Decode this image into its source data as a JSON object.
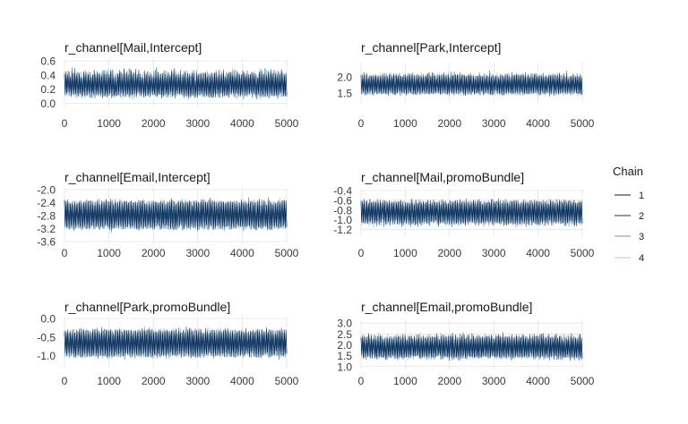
{
  "legend": {
    "title": "Chain",
    "placement": "right",
    "items": [
      {
        "label": "1",
        "color": "#011f4b"
      },
      {
        "label": "2",
        "color": "#03396c"
      },
      {
        "label": "3",
        "color": "#6497b1"
      },
      {
        "label": "4",
        "color": "#b3cde0"
      }
    ]
  },
  "chart_data": [
    {
      "type": "line",
      "title": "r_channel[Mail,Intercept]",
      "x_range": [
        0,
        5000
      ],
      "x_ticks": [
        "0",
        "1000",
        "2000",
        "3000",
        "4000",
        "5000"
      ],
      "ylim": [
        -0.03,
        0.6
      ],
      "y_ticks": [
        "0.0",
        "0.2",
        "0.4",
        "0.6"
      ],
      "bands": [
        {
          "center": 0.41,
          "spread": 0.07
        },
        {
          "center": 0.12,
          "spread": 0.05
        }
      ],
      "series": [
        {
          "name": "1"
        },
        {
          "name": "2"
        },
        {
          "name": "3"
        },
        {
          "name": "4"
        }
      ]
    },
    {
      "type": "line",
      "title": "r_channel[Park,Intercept]",
      "x_range": [
        0,
        5000
      ],
      "x_ticks": [
        "0",
        "1000",
        "2000",
        "3000",
        "4000",
        "5000"
      ],
      "ylim": [
        1.25,
        2.38
      ],
      "y_ticks": [
        "1.5",
        "2.0"
      ],
      "bands": [
        {
          "center": 2.02,
          "spread": 0.11
        },
        {
          "center": 1.5,
          "spread": 0.08
        }
      ],
      "series": [
        {
          "name": "1"
        },
        {
          "name": "2"
        },
        {
          "name": "3"
        },
        {
          "name": "4"
        }
      ]
    },
    {
      "type": "line",
      "title": "r_channel[Email,Intercept]",
      "x_range": [
        0,
        5000
      ],
      "x_ticks": [
        "0",
        "1000",
        "2000",
        "3000",
        "4000",
        "5000"
      ],
      "ylim": [
        -3.6,
        -2.0
      ],
      "y_ticks": [
        "-2.0",
        "-2.4",
        "-2.8",
        "-3.2",
        "-3.6"
      ],
      "bands": [
        {
          "center": -2.4,
          "spread": 0.1
        },
        {
          "center": -3.15,
          "spread": 0.1
        }
      ],
      "series": [
        {
          "name": "1"
        },
        {
          "name": "2"
        },
        {
          "name": "3"
        },
        {
          "name": "4"
        }
      ]
    },
    {
      "type": "line",
      "title": "r_channel[Mail,promoBundle]",
      "x_range": [
        0,
        5000
      ],
      "x_ticks": [
        "0",
        "1000",
        "2000",
        "3000",
        "4000",
        "5000"
      ],
      "ylim": [
        -1.3,
        -0.4
      ],
      "y_ticks": [
        "-0.4",
        "-0.6",
        "-0.8",
        "-1.0",
        "-1.2"
      ],
      "bands": [
        {
          "center": -0.64,
          "spread": 0.06
        },
        {
          "center": -1.06,
          "spread": 0.07
        }
      ],
      "series": [
        {
          "name": "1"
        },
        {
          "name": "2"
        },
        {
          "name": "3"
        },
        {
          "name": "4"
        }
      ]
    },
    {
      "type": "line",
      "title": "r_channel[Park,promoBundle]",
      "x_range": [
        0,
        5000
      ],
      "x_ticks": [
        "0",
        "1000",
        "2000",
        "3000",
        "4000",
        "5000"
      ],
      "ylim": [
        -1.3,
        0.0
      ],
      "y_ticks": [
        "0.0",
        "-0.5",
        "-1.0"
      ],
      "bands": [
        {
          "center": -0.35,
          "spread": 0.09
        },
        {
          "center": -0.98,
          "spread": 0.09
        }
      ],
      "series": [
        {
          "name": "1"
        },
        {
          "name": "2"
        },
        {
          "name": "3"
        },
        {
          "name": "4"
        }
      ]
    },
    {
      "type": "line",
      "title": "r_channel[Email,promoBundle]",
      "x_range": [
        0,
        5000
      ],
      "x_ticks": [
        "0",
        "1000",
        "2000",
        "3000",
        "4000",
        "5000"
      ],
      "ylim": [
        0.95,
        3.05
      ],
      "y_ticks": [
        "1.0",
        "1.5",
        "2.0",
        "2.5",
        "3.0"
      ],
      "bands": [
        {
          "center": 2.35,
          "spread": 0.17
        },
        {
          "center": 1.45,
          "spread": 0.14
        }
      ],
      "series": [
        {
          "name": "1"
        },
        {
          "name": "2"
        },
        {
          "name": "3"
        },
        {
          "name": "4"
        }
      ]
    }
  ]
}
